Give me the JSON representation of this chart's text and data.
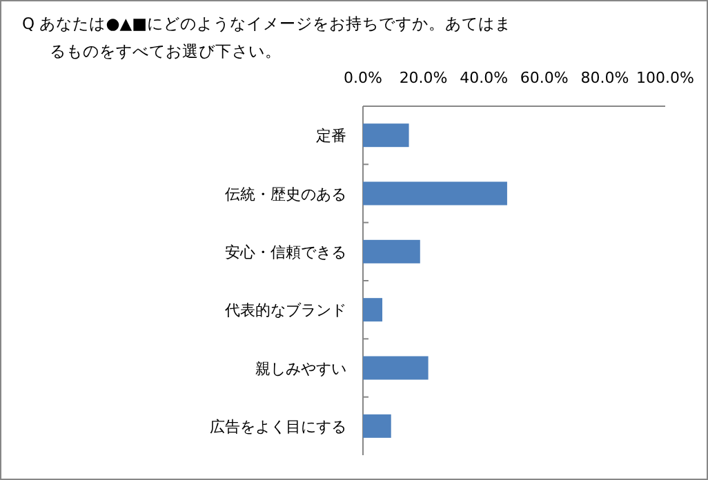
{
  "chart_data": {
    "type": "bar",
    "orientation": "horizontal",
    "title": "Q あなたは●▲■にどのようなイメージをお持ちですか。あてはまるものをすべてお選び下さい。",
    "categories": [
      "定番",
      "伝統・歴史のある",
      "安心・信頼できる",
      "代表的なブランド",
      "親しみやすい",
      "広告をよく目にする"
    ],
    "values": [
      15.2,
      47.7,
      18.9,
      6.4,
      21.6,
      9.3
    ],
    "color": "#4f81bd",
    "xlim": [
      0,
      100
    ],
    "xticks": [
      {
        "value": 0,
        "label": "0.0%"
      },
      {
        "value": 20,
        "label": "20.0%"
      },
      {
        "value": 40,
        "label": "40.0%"
      },
      {
        "value": 60,
        "label": "60.0%"
      },
      {
        "value": 80,
        "label": "80.0%"
      },
      {
        "value": 100,
        "label": "100.0%"
      }
    ],
    "grid": false
  }
}
